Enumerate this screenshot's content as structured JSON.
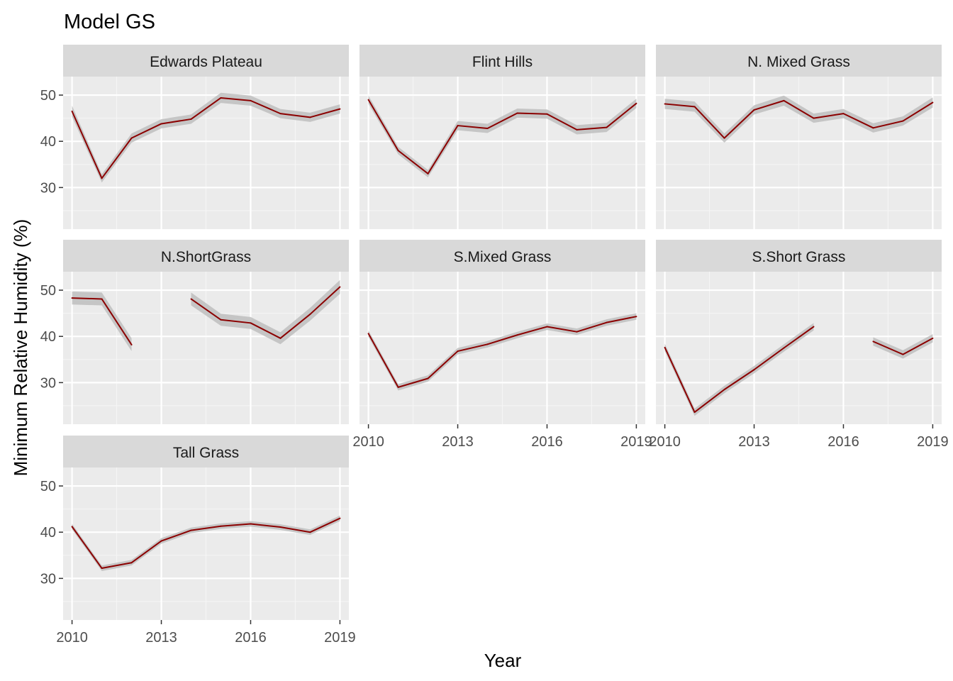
{
  "chart_data": {
    "type": "line",
    "title": "Model GS",
    "xlabel": "Year",
    "ylabel": "Minimum Relative Humidity (%)",
    "xlim": [
      2009.7,
      2019.3
    ],
    "ylim": [
      21,
      54
    ],
    "x_ticks": [
      2010,
      2013,
      2016,
      2019
    ],
    "y_ticks": [
      30,
      40,
      50
    ],
    "ribbon_color": "#bebebe",
    "line_color": "#8b0000",
    "panel_background": "#ebebeb",
    "strip_background": "#d9d9d9",
    "grid": true,
    "x": [
      2010,
      2011,
      2012,
      2013,
      2014,
      2015,
      2016,
      2017,
      2018,
      2019
    ],
    "panels": [
      {
        "name": "Edwards Plateau",
        "values": [
          46.5,
          32.0,
          40.7,
          43.8,
          44.8,
          49.4,
          48.8,
          46.0,
          45.2,
          47.0
        ],
        "band": [
          1.2,
          0.9,
          1.0,
          1.0,
          1.0,
          1.1,
          1.1,
          1.0,
          1.0,
          1.0
        ]
      },
      {
        "name": "Flint Hills",
        "values": [
          49.0,
          38.0,
          33.0,
          43.4,
          42.8,
          46.1,
          45.9,
          42.5,
          43.0,
          48.2
        ],
        "band": [
          0.9,
          0.8,
          0.8,
          1.0,
          1.0,
          1.0,
          1.0,
          1.0,
          1.0,
          1.0
        ]
      },
      {
        "name": "N. Mixed Grass",
        "values": [
          48.1,
          47.5,
          40.7,
          46.8,
          48.8,
          45.0,
          46.0,
          42.9,
          44.4,
          48.4
        ],
        "band": [
          1.1,
          1.1,
          1.0,
          1.0,
          1.1,
          1.0,
          1.0,
          1.0,
          1.0,
          1.1
        ]
      },
      {
        "name": "N.ShortGrass",
        "values": [
          48.3,
          48.1,
          38.2,
          null,
          48.1,
          43.6,
          42.9,
          39.6,
          44.8,
          50.7
        ],
        "band": [
          1.4,
          1.4,
          1.4,
          null,
          1.4,
          1.3,
          1.3,
          1.3,
          1.4,
          1.5
        ]
      },
      {
        "name": "S.Mixed Grass",
        "values": [
          40.6,
          29.0,
          30.9,
          36.8,
          38.3,
          40.3,
          42.1,
          41.0,
          43.0,
          44.3
        ],
        "band": [
          0.7,
          0.7,
          0.7,
          0.7,
          0.7,
          0.7,
          0.7,
          0.7,
          0.7,
          0.7
        ]
      },
      {
        "name": "S.Short Grass",
        "values": [
          37.6,
          23.6,
          28.5,
          32.8,
          37.5,
          42.1,
          null,
          38.9,
          36.1,
          39.6
        ],
        "band": [
          0.8,
          0.8,
          0.8,
          0.8,
          0.8,
          0.8,
          null,
          0.9,
          0.9,
          0.9
        ]
      },
      {
        "name": "Tall Grass",
        "values": [
          41.2,
          32.2,
          33.4,
          38.1,
          40.4,
          41.3,
          41.8,
          41.1,
          40.0,
          43.0
        ],
        "band": [
          0.6,
          0.6,
          0.6,
          0.6,
          0.6,
          0.6,
          0.6,
          0.6,
          0.6,
          0.6
        ]
      }
    ]
  }
}
